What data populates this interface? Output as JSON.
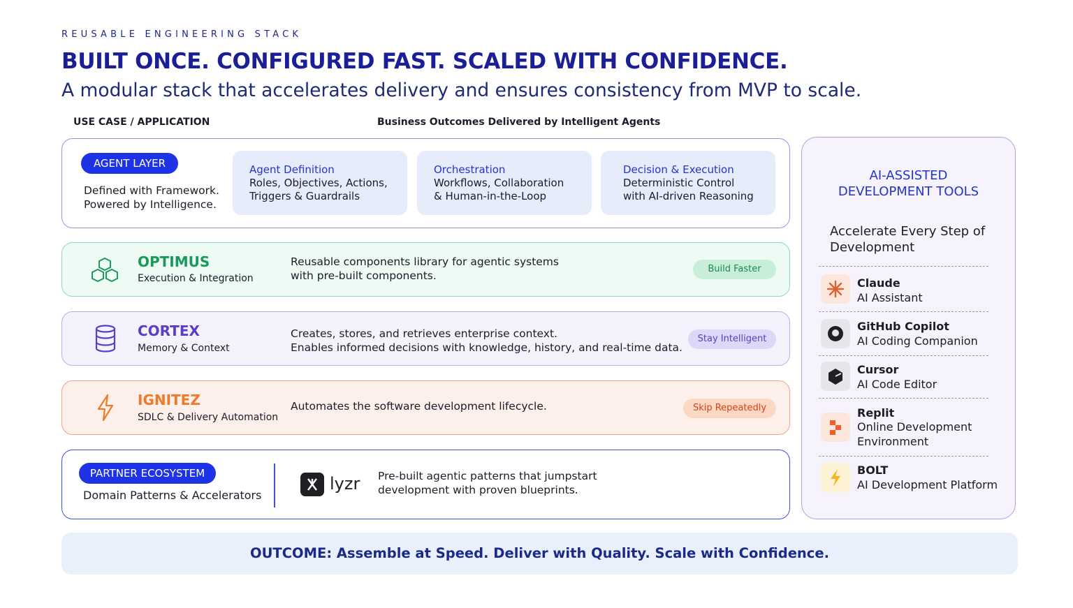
{
  "header": {
    "eyebrow": "REUSABLE ENGINEERING STACK",
    "title": "BUILT ONCE. CONFIGURED FAST. SCALED WITH CONFIDENCE.",
    "subtitle": "A modular stack that accelerates delivery and ensures consistency from MVP to scale."
  },
  "column_labels": {
    "left": "USE CASE / APPLICATION",
    "right": "Business Outcomes Delivered by Intelligent Agents"
  },
  "agent_layer": {
    "badge": "AGENT LAYER",
    "description": [
      "Defined with Framework.",
      "Powered by Intelligence."
    ],
    "cards": [
      {
        "title": "Agent Definition",
        "lines": [
          "Roles, Objectives, Actions,",
          "Triggers & Guardrails"
        ]
      },
      {
        "title": "Orchestration",
        "lines": [
          "Workflows, Collaboration",
          "& Human-in-the-Loop"
        ]
      },
      {
        "title": "Decision & Execution",
        "lines": [
          "Deterministic Control",
          "with AI-driven Reasoning"
        ]
      }
    ]
  },
  "layers": [
    {
      "name": "OPTIMUS",
      "subtitle": "Execution & Integration",
      "description": [
        "Reusable components library for agentic systems",
        "with pre-built components."
      ],
      "tag": "Build Faster"
    },
    {
      "name": "CORTEX",
      "subtitle": "Memory & Context",
      "description": [
        "Creates, stores, and retrieves enterprise context.",
        "Enables informed decisions with knowledge, history, and real-time data."
      ],
      "tag": "Stay Intelligent"
    },
    {
      "name": "IGNITEZ",
      "subtitle": "SDLC & Delivery Automation",
      "description": [
        "Automates the software development lifecycle."
      ],
      "tag": "Skip Repeatedly"
    }
  ],
  "partner": {
    "badge": "PARTNER ECOSYSTEM",
    "description": "Domain Patterns & Accelerators",
    "logo": "lyzr",
    "text": [
      "Pre-built agentic patterns that jumpstart",
      "development with proven blueprints."
    ]
  },
  "tools": {
    "title": [
      "AI-ASSISTED",
      "DEVELOPMENT TOOLS"
    ],
    "subtitle": "Accelerate Every Step of Development",
    "items": [
      {
        "name": "Claude",
        "description": "AI Assistant"
      },
      {
        "name": "GitHub Copilot",
        "description": "AI Coding Companion"
      },
      {
        "name": "Cursor",
        "description": "AI Code Editor"
      },
      {
        "name": "Replit",
        "description": "Online Development Environment"
      },
      {
        "name": "BOLT",
        "description": "AI Development Platform"
      }
    ]
  },
  "outcome": "OUTCOME: Assemble at Speed. Deliver with Quality. Scale with Confidence."
}
